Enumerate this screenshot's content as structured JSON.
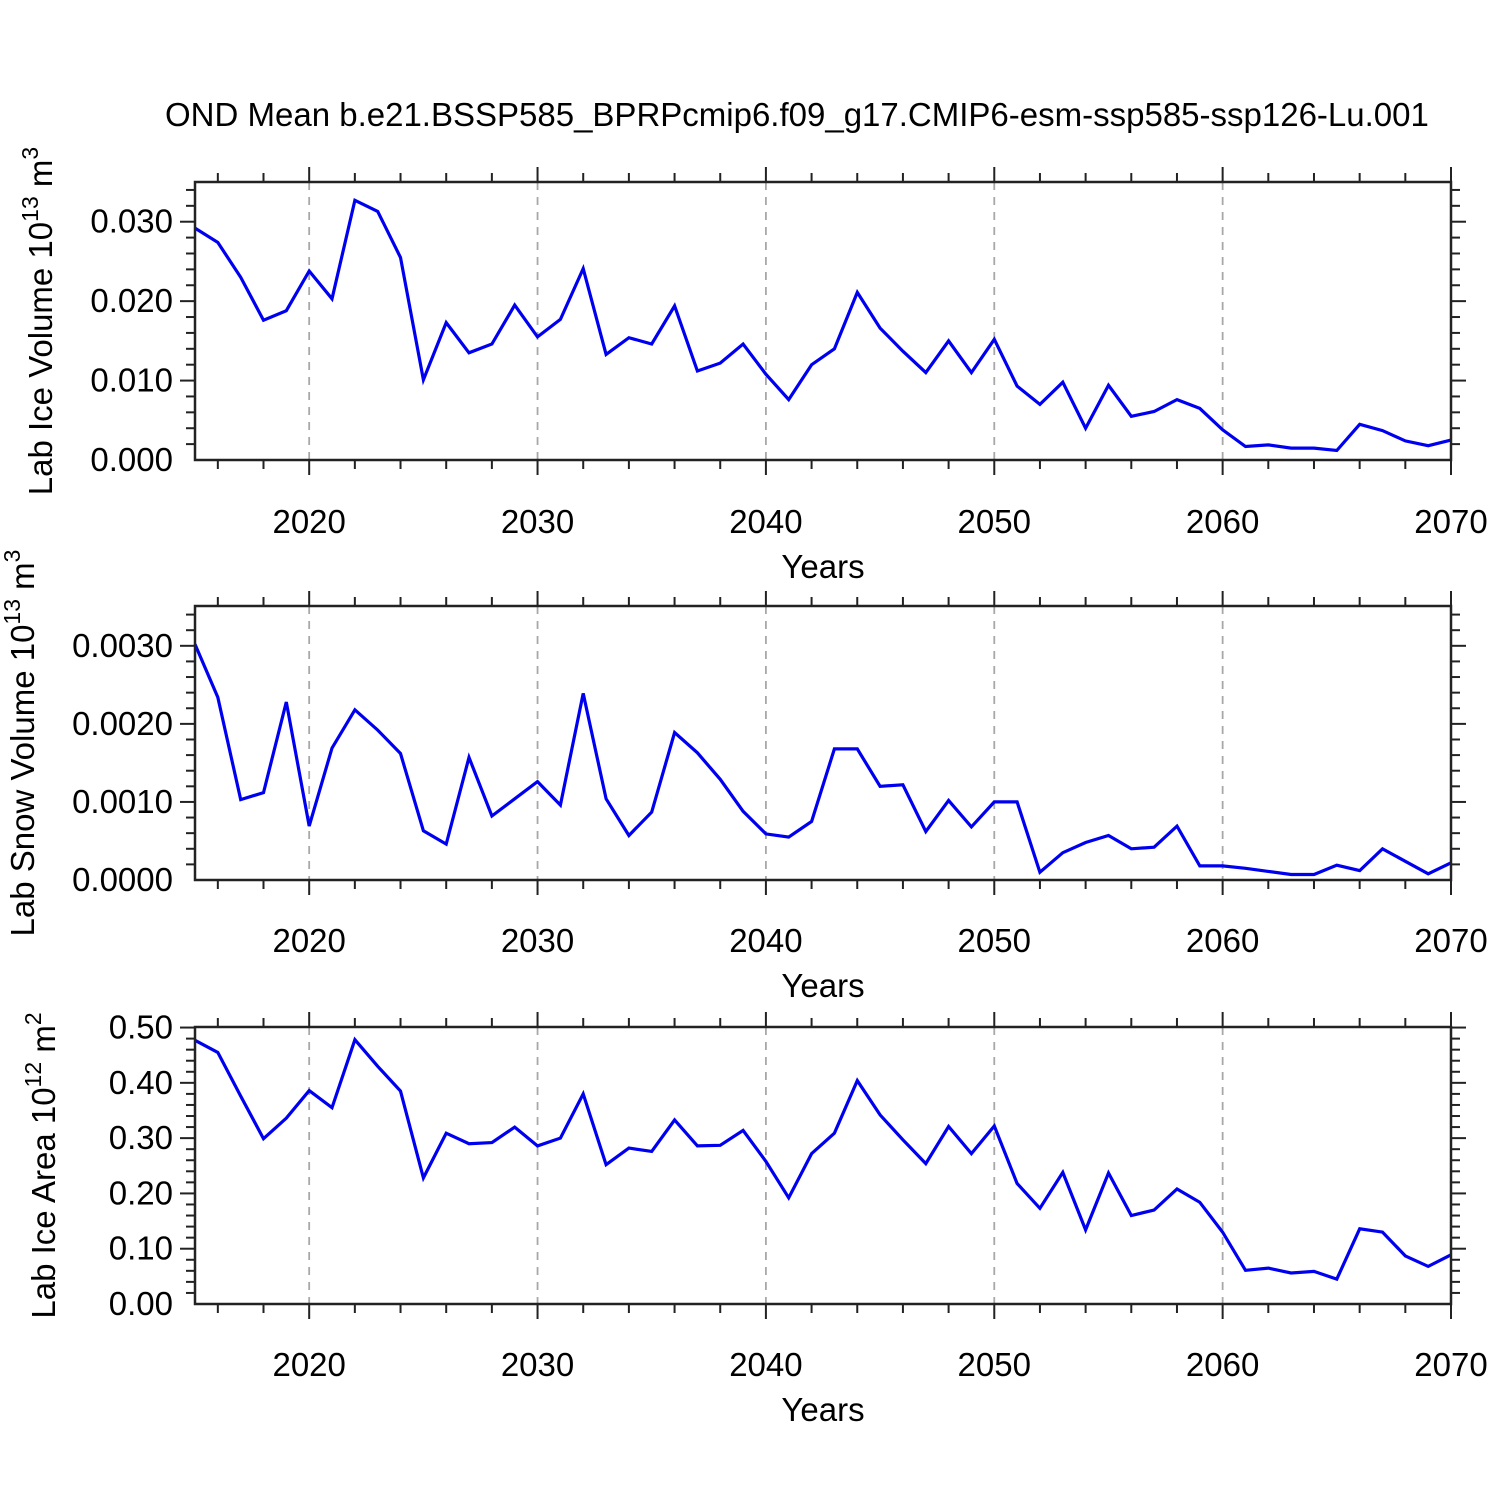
{
  "title": "OND Mean b.e21.BSSP585_BPRPcmip6.f09_g17.CMIP6-esm-ssp585-ssp126-Lu.001",
  "colors": {
    "line": "#0000f0",
    "axis": "#222222",
    "grid": "#a8a8a8",
    "text": "#000000"
  },
  "chart_data": [
    {
      "type": "line",
      "name": "lab-ice-volume",
      "ylabel_parts": [
        "Lab Ice Volume 10",
        "13",
        " m",
        "3"
      ],
      "xlabel": "Years",
      "x_start": 2015,
      "x_end": 2070,
      "xlim": [
        2015,
        2070
      ],
      "ylim": [
        0,
        0.035
      ],
      "ytick_major": 0.01,
      "ytick_minor": 0.002,
      "ytick_decimals": 3,
      "xtick_major_step": 10,
      "xtick_minor_step": 2,
      "grid_x": [
        2020,
        2030,
        2040,
        2050,
        2060
      ],
      "xtick_labels": [
        "2020",
        "2030",
        "2040",
        "2050",
        "2060",
        "2070"
      ],
      "ytick_labels": [
        "0.000",
        "0.010",
        "0.020",
        "0.030"
      ],
      "values": [
        0.0292,
        0.0274,
        0.023,
        0.0176,
        0.0188,
        0.0238,
        0.0203,
        0.0327,
        0.0313,
        0.0255,
        0.0101,
        0.0173,
        0.0135,
        0.0146,
        0.0195,
        0.0155,
        0.0177,
        0.0241,
        0.0133,
        0.0154,
        0.0146,
        0.0194,
        0.0112,
        0.0122,
        0.0146,
        0.0108,
        0.0076,
        0.012,
        0.014,
        0.0211,
        0.0166,
        0.0137,
        0.011,
        0.015,
        0.011,
        0.0152,
        0.0093,
        0.007,
        0.0098,
        0.004,
        0.0094,
        0.0055,
        0.0061,
        0.0076,
        0.0065,
        0.0038,
        0.0017,
        0.0019,
        0.0015,
        0.0015,
        0.0012,
        0.0045,
        0.0037,
        0.0024,
        0.0018,
        0.0025
      ]
    },
    {
      "type": "line",
      "name": "lab-snow-volume",
      "ylabel_parts": [
        "Lab Snow Volume 10",
        "13",
        " m",
        "3"
      ],
      "xlabel": "Years",
      "x_start": 2015,
      "x_end": 2070,
      "xlim": [
        2015,
        2070
      ],
      "ylim": [
        0,
        0.00351
      ],
      "ytick_major": 0.001,
      "ytick_minor": 0.0002,
      "ytick_decimals": 4,
      "xtick_major_step": 10,
      "xtick_minor_step": 2,
      "grid_x": [
        2020,
        2030,
        2040,
        2050,
        2060
      ],
      "xtick_labels": [
        "2020",
        "2030",
        "2040",
        "2050",
        "2060",
        "2070"
      ],
      "ytick_labels": [
        "0.0000",
        "0.0010",
        "0.0020",
        "0.0030"
      ],
      "values": [
        0.00302,
        0.00234,
        0.00103,
        0.00112,
        0.00228,
        0.00069,
        0.00169,
        0.00218,
        0.00192,
        0.00162,
        0.00063,
        0.00046,
        0.00157,
        0.00082,
        0.00104,
        0.00126,
        0.00096,
        0.00239,
        0.00104,
        0.00057,
        0.00087,
        0.00189,
        0.00163,
        0.00129,
        0.00088,
        0.00059,
        0.00055,
        0.00075,
        0.00168,
        0.00168,
        0.0012,
        0.00122,
        0.00062,
        0.00102,
        0.00068,
        0.001,
        0.001,
        0.0001,
        0.00035,
        0.00048,
        0.00057,
        0.0004,
        0.00042,
        0.00069,
        0.00018,
        0.00018,
        0.00015,
        0.00011,
        7e-05,
        7e-05,
        0.00019,
        0.00012,
        0.0004,
        0.00024,
        8e-05,
        0.00022
      ]
    },
    {
      "type": "line",
      "name": "lab-ice-area",
      "ylabel_parts": [
        "Lab Ice Area 10",
        "12",
        " m",
        "2"
      ],
      "xlabel": "Years",
      "x_start": 2015,
      "x_end": 2070,
      "xlim": [
        2015,
        2070
      ],
      "ylim": [
        0,
        0.501
      ],
      "ytick_major": 0.1,
      "ytick_minor": 0.02,
      "ytick_decimals": 2,
      "xtick_major_step": 10,
      "xtick_minor_step": 2,
      "grid_x": [
        2020,
        2030,
        2040,
        2050,
        2060
      ],
      "xtick_labels": [
        "2020",
        "2030",
        "2040",
        "2050",
        "2060",
        "2070"
      ],
      "ytick_labels": [
        "0.00",
        "0.10",
        "0.20",
        "0.30",
        "0.40",
        "0.50"
      ],
      "values": [
        0.477,
        0.455,
        0.376,
        0.299,
        0.336,
        0.386,
        0.355,
        0.478,
        0.43,
        0.385,
        0.228,
        0.309,
        0.29,
        0.292,
        0.32,
        0.286,
        0.3,
        0.38,
        0.252,
        0.282,
        0.276,
        0.333,
        0.286,
        0.287,
        0.314,
        0.258,
        0.192,
        0.272,
        0.309,
        0.404,
        0.342,
        0.297,
        0.254,
        0.321,
        0.272,
        0.322,
        0.218,
        0.173,
        0.238,
        0.134,
        0.237,
        0.16,
        0.17,
        0.208,
        0.184,
        0.13,
        0.061,
        0.065,
        0.056,
        0.059,
        0.045,
        0.136,
        0.13,
        0.087,
        0.068,
        0.089
      ]
    }
  ]
}
